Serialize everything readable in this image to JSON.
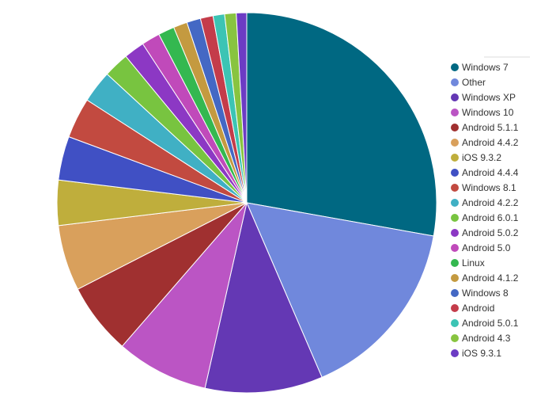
{
  "chart_data": {
    "type": "pie",
    "title": "",
    "legend_position": "right",
    "slices": [
      {
        "label": "Windows 7",
        "value": 28.3,
        "color": "#006882"
      },
      {
        "label": "Other",
        "value": 16.0,
        "color": "#7088dc"
      },
      {
        "label": "Windows XP",
        "value": 10.2,
        "color": "#6438b4"
      },
      {
        "label": "Windows 10",
        "value": 8.0,
        "color": "#bb55c4"
      },
      {
        "label": "Android 5.1.1",
        "value": 6.2,
        "color": "#a03030"
      },
      {
        "label": "Android 4.4.2",
        "value": 5.7,
        "color": "#d9a05c"
      },
      {
        "label": "iOS 9.3.2",
        "value": 3.9,
        "color": "#bfae3c"
      },
      {
        "label": "Android 4.4.4",
        "value": 3.8,
        "color": "#4050c4"
      },
      {
        "label": "Windows 8.1",
        "value": 3.5,
        "color": "#c24a40"
      },
      {
        "label": "Android 4.2.2",
        "value": 2.8,
        "color": "#40b0c4"
      },
      {
        "label": "Android 6.0.1",
        "value": 2.2,
        "color": "#78c440"
      },
      {
        "label": "Android 5.0.2",
        "value": 1.8,
        "color": "#8c38c4"
      },
      {
        "label": "Android 5.0",
        "value": 1.6,
        "color": "#c04aba"
      },
      {
        "label": "Linux",
        "value": 1.4,
        "color": "#34b850"
      },
      {
        "label": "Android 4.1.2",
        "value": 1.2,
        "color": "#c49a40"
      },
      {
        "label": "Windows 8",
        "value": 1.2,
        "color": "#4468c4"
      },
      {
        "label": "Android",
        "value": 1.1,
        "color": "#c43c4a"
      },
      {
        "label": "Android 5.0.1",
        "value": 1.0,
        "color": "#3cc4b4"
      },
      {
        "label": "Android 4.3",
        "value": 1.0,
        "color": "#88c440"
      },
      {
        "label": "iOS 9.3.1",
        "value": 0.9,
        "color": "#6c3cc4"
      }
    ]
  }
}
